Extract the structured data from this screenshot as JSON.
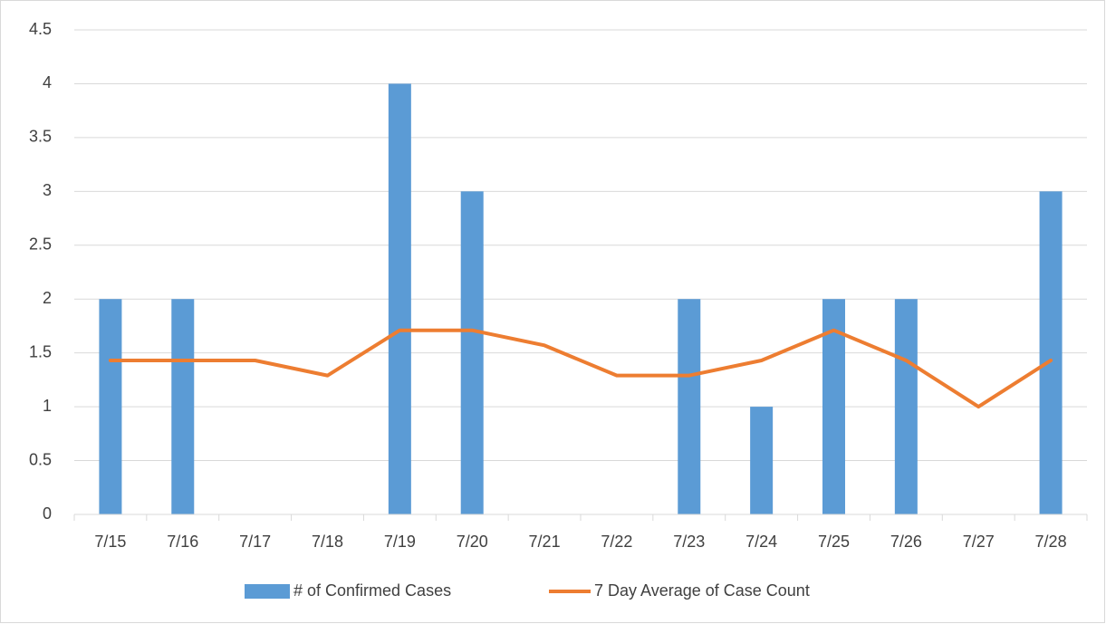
{
  "chart_data": {
    "type": "combo",
    "categories": [
      "7/15",
      "7/16",
      "7/17",
      "7/18",
      "7/19",
      "7/20",
      "7/21",
      "7/22",
      "7/23",
      "7/24",
      "7/25",
      "7/26",
      "7/27",
      "7/28"
    ],
    "series": [
      {
        "name": "# of Confirmed Cases",
        "type": "bar",
        "color": "#5b9bd5",
        "values": [
          2,
          2,
          0,
          0,
          4,
          3,
          0,
          0,
          2,
          1,
          2,
          2,
          0,
          3
        ]
      },
      {
        "name": "7 Day Average of Case Count",
        "type": "line",
        "color": "#ed7d31",
        "values": [
          1.43,
          1.43,
          1.43,
          1.29,
          1.71,
          1.71,
          1.57,
          1.29,
          1.29,
          1.43,
          1.71,
          1.43,
          1.0,
          1.43
        ]
      }
    ],
    "ylim": [
      0,
      4.5
    ],
    "yticks": [
      0,
      0.5,
      1,
      1.5,
      2,
      2.5,
      3,
      3.5,
      4,
      4.5
    ],
    "grid": true,
    "legend": "bottom"
  }
}
